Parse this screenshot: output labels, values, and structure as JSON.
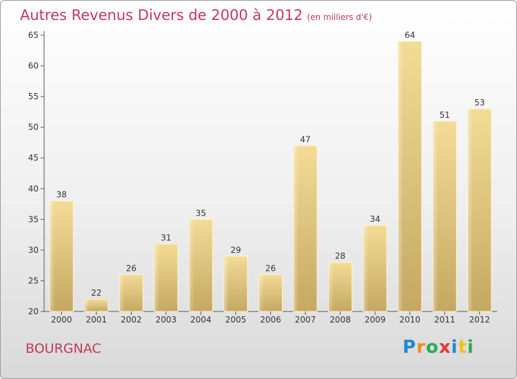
{
  "title": "Autres Revenus Divers de 2000 à 2012",
  "unit_note": "(en milliers d'€)",
  "commune": "BOURGNAC",
  "logo": {
    "text": "Proxiti",
    "letters": [
      {
        "ch": "P",
        "color": "#1f88d6"
      },
      {
        "ch": "r",
        "color": "#f08a1c"
      },
      {
        "ch": "o",
        "color": "#2fa84f"
      },
      {
        "ch": "x",
        "color": "#e23a3a"
      },
      {
        "ch": "i",
        "color": "#1f88d6"
      },
      {
        "ch": "t",
        "color": "#f0c419"
      },
      {
        "ch": "i",
        "color": "#2fa84f"
      }
    ]
  },
  "colors": {
    "title": "#c0395a",
    "bar_light": "#f3dc96",
    "bar_dark": "#c5a862",
    "axis": "#555555"
  },
  "chart_data": {
    "type": "bar",
    "title": "Autres Revenus Divers de 2000 à 2012",
    "xlabel": "",
    "ylabel": "",
    "categories": [
      "2000",
      "2001",
      "2002",
      "2003",
      "2004",
      "2005",
      "2006",
      "2007",
      "2008",
      "2009",
      "2010",
      "2011",
      "2012"
    ],
    "values": [
      38,
      22,
      26,
      31,
      35,
      29,
      26,
      47,
      28,
      34,
      64,
      51,
      53
    ],
    "ylim": [
      20,
      65
    ],
    "yticks": [
      20,
      25,
      30,
      35,
      40,
      45,
      50,
      55,
      60,
      65
    ],
    "grid": false,
    "data_labels": true
  }
}
